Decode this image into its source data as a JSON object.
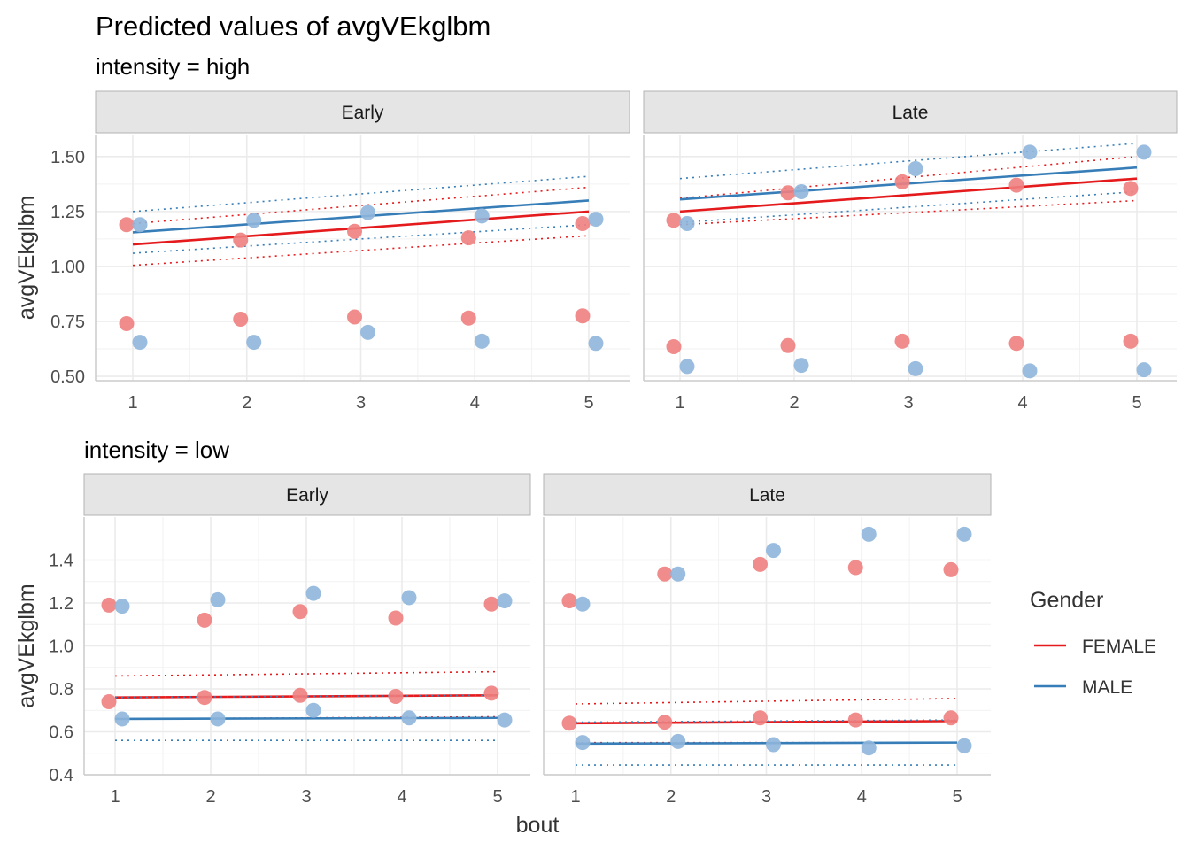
{
  "chart_data": {
    "type": "scatter",
    "title": "Predicted values of avgVEkglbm",
    "xlabel": "bout",
    "ylabel": "avgVEkglbm",
    "x": [
      1,
      2,
      3,
      4,
      5
    ],
    "legend": {
      "title": "Gender",
      "position": "right",
      "entries": [
        {
          "name": "FEMALE",
          "color": "#e41a1c",
          "point_color": "#f08080"
        },
        {
          "name": "MALE",
          "color": "#377eb8",
          "point_color": "#8fb6db"
        }
      ]
    },
    "grid": true,
    "panels": [
      {
        "row_label": "intensity = high",
        "ylim": [
          0.48,
          1.6
        ],
        "yticks": [
          0.5,
          0.75,
          1.0,
          1.25,
          1.5
        ],
        "ytick_labels": [
          "0.50",
          "0.75",
          "1.00",
          "1.25",
          "1.50"
        ],
        "facets": [
          {
            "label": "Early",
            "series": [
              {
                "name": "FEMALE",
                "fit": [
                  1.1,
                  1.25
                ],
                "ci_low": [
                  1.005,
                  1.14
                ],
                "ci_high": [
                  1.195,
                  1.36
                ],
                "points": [
                  [
                    1,
                    1.19
                  ],
                  [
                    1,
                    0.74
                  ],
                  [
                    2,
                    1.12
                  ],
                  [
                    2,
                    0.76
                  ],
                  [
                    3,
                    1.16
                  ],
                  [
                    3,
                    0.77
                  ],
                  [
                    4,
                    1.13
                  ],
                  [
                    4,
                    0.765
                  ],
                  [
                    5,
                    1.195
                  ],
                  [
                    5,
                    0.775
                  ]
                ]
              },
              {
                "name": "MALE",
                "fit": [
                  1.155,
                  1.3
                ],
                "ci_low": [
                  1.06,
                  1.19
                ],
                "ci_high": [
                  1.25,
                  1.41
                ],
                "points": [
                  [
                    1,
                    1.19
                  ],
                  [
                    1,
                    0.655
                  ],
                  [
                    2,
                    1.21
                  ],
                  [
                    2,
                    0.655
                  ],
                  [
                    3,
                    1.245
                  ],
                  [
                    3,
                    0.7
                  ],
                  [
                    4,
                    1.23
                  ],
                  [
                    4,
                    0.66
                  ],
                  [
                    5,
                    1.215
                  ],
                  [
                    5,
                    0.65
                  ]
                ]
              }
            ]
          },
          {
            "label": "Late",
            "series": [
              {
                "name": "FEMALE",
                "fit": [
                  1.25,
                  1.4
                ],
                "ci_low": [
                  1.19,
                  1.3
                ],
                "ci_high": [
                  1.31,
                  1.5
                ],
                "points": [
                  [
                    1,
                    1.21
                  ],
                  [
                    1,
                    0.635
                  ],
                  [
                    2,
                    1.335
                  ],
                  [
                    2,
                    0.64
                  ],
                  [
                    3,
                    1.385
                  ],
                  [
                    3,
                    0.66
                  ],
                  [
                    4,
                    1.37
                  ],
                  [
                    4,
                    0.65
                  ],
                  [
                    5,
                    1.355
                  ],
                  [
                    5,
                    0.66
                  ]
                ]
              },
              {
                "name": "MALE",
                "fit": [
                  1.305,
                  1.45
                ],
                "ci_low": [
                  1.2,
                  1.34
                ],
                "ci_high": [
                  1.4,
                  1.56
                ],
                "points": [
                  [
                    1,
                    1.195
                  ],
                  [
                    1,
                    0.545
                  ],
                  [
                    2,
                    1.34
                  ],
                  [
                    2,
                    0.55
                  ],
                  [
                    3,
                    1.445
                  ],
                  [
                    3,
                    0.535
                  ],
                  [
                    4,
                    1.52
                  ],
                  [
                    4,
                    0.525
                  ],
                  [
                    5,
                    1.52
                  ],
                  [
                    5,
                    0.53
                  ]
                ]
              }
            ]
          }
        ]
      },
      {
        "row_label": "intensity = low",
        "ylim": [
          0.4,
          1.6
        ],
        "yticks": [
          0.4,
          0.6,
          0.8,
          1.0,
          1.2,
          1.4
        ],
        "ytick_labels": [
          "0.4",
          "0.6",
          "0.8",
          "1.0",
          "1.2",
          "1.4"
        ],
        "facets": [
          {
            "label": "Early",
            "series": [
              {
                "name": "FEMALE",
                "fit": [
                  0.76,
                  0.77
                ],
                "ci_low": [
                  0.66,
                  0.67
                ],
                "ci_high": [
                  0.86,
                  0.88
                ],
                "points": [
                  [
                    1,
                    1.19
                  ],
                  [
                    1,
                    0.74
                  ],
                  [
                    2,
                    1.12
                  ],
                  [
                    2,
                    0.76
                  ],
                  [
                    3,
                    1.16
                  ],
                  [
                    3,
                    0.77
                  ],
                  [
                    4,
                    1.13
                  ],
                  [
                    4,
                    0.765
                  ],
                  [
                    5,
                    1.195
                  ],
                  [
                    5,
                    0.78
                  ]
                ]
              },
              {
                "name": "MALE",
                "fit": [
                  0.66,
                  0.665
                ],
                "ci_low": [
                  0.56,
                  0.56
                ],
                "ci_high": [
                  0.76,
                  0.77
                ],
                "points": [
                  [
                    1,
                    1.185
                  ],
                  [
                    1,
                    0.66
                  ],
                  [
                    2,
                    1.215
                  ],
                  [
                    2,
                    0.66
                  ],
                  [
                    3,
                    1.245
                  ],
                  [
                    3,
                    0.7
                  ],
                  [
                    4,
                    1.225
                  ],
                  [
                    4,
                    0.665
                  ],
                  [
                    5,
                    1.21
                  ],
                  [
                    5,
                    0.655
                  ]
                ]
              }
            ]
          },
          {
            "label": "Late",
            "series": [
              {
                "name": "FEMALE",
                "fit": [
                  0.64,
                  0.65
                ],
                "ci_low": [
                  0.55,
                  0.55
                ],
                "ci_high": [
                  0.73,
                  0.755
                ],
                "points": [
                  [
                    1,
                    1.21
                  ],
                  [
                    1,
                    0.64
                  ],
                  [
                    2,
                    1.335
                  ],
                  [
                    2,
                    0.645
                  ],
                  [
                    3,
                    1.38
                  ],
                  [
                    3,
                    0.665
                  ],
                  [
                    4,
                    1.365
                  ],
                  [
                    4,
                    0.655
                  ],
                  [
                    5,
                    1.355
                  ],
                  [
                    5,
                    0.665
                  ]
                ]
              },
              {
                "name": "MALE",
                "fit": [
                  0.545,
                  0.55
                ],
                "ci_low": [
                  0.445,
                  0.445
                ],
                "ci_high": [
                  0.645,
                  0.655
                ],
                "points": [
                  [
                    1,
                    1.195
                  ],
                  [
                    1,
                    0.55
                  ],
                  [
                    2,
                    1.335
                  ],
                  [
                    2,
                    0.555
                  ],
                  [
                    3,
                    1.445
                  ],
                  [
                    3,
                    0.54
                  ],
                  [
                    4,
                    1.52
                  ],
                  [
                    4,
                    0.525
                  ],
                  [
                    5,
                    1.52
                  ],
                  [
                    5,
                    0.535
                  ]
                ]
              }
            ]
          }
        ]
      }
    ]
  }
}
